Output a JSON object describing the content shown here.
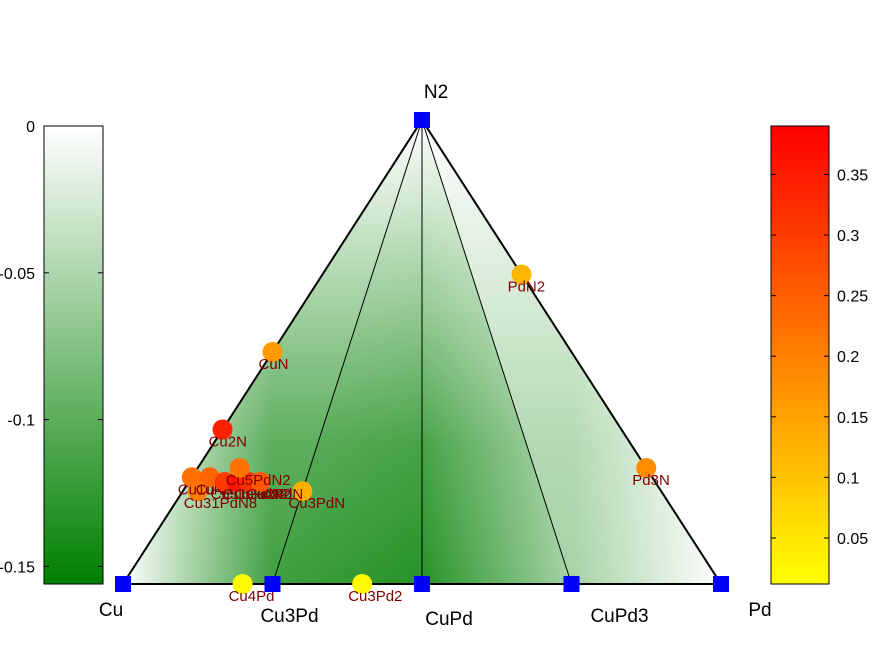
{
  "chart_data": {
    "type": "scatter",
    "subtype": "ternary-convex-hull",
    "vertices": {
      "bottom_left": "Cu",
      "top": "N2",
      "bottom_right": "Pd"
    },
    "edge_labels": [
      "Cu3Pd",
      "CuPd",
      "CuPd3"
    ],
    "hull_vertices": [
      {
        "name": "Cu",
        "cu": 1.0,
        "pd": 0.0,
        "n": 0.0
      },
      {
        "name": "Cu3Pd",
        "cu": 0.75,
        "pd": 0.25,
        "n": 0.0
      },
      {
        "name": "CuPd",
        "cu": 0.5,
        "pd": 0.5,
        "n": 0.0
      },
      {
        "name": "CuPd3",
        "cu": 0.25,
        "pd": 0.75,
        "n": 0.0
      },
      {
        "name": "Pd",
        "cu": 0.0,
        "pd": 1.0,
        "n": 0.0
      },
      {
        "name": "N2",
        "cu": 0.0,
        "pd": 0.0,
        "n": 1.0
      }
    ],
    "tie_lines": [
      [
        "N2",
        "Cu3Pd"
      ],
      [
        "N2",
        "CuPd"
      ],
      [
        "N2",
        "CuPd3"
      ]
    ],
    "points": [
      {
        "label": "PdN2",
        "cu": 0.0,
        "pd": 0.333,
        "n": 0.667,
        "value": 0.12
      },
      {
        "label": "CuN",
        "cu": 0.5,
        "pd": 0.0,
        "n": 0.5,
        "value": 0.16
      },
      {
        "label": "Cu2N",
        "cu": 0.667,
        "pd": 0.0,
        "n": 0.333,
        "value": 0.34
      },
      {
        "label": "Pd3N",
        "cu": 0.0,
        "pd": 0.75,
        "n": 0.25,
        "value": 0.18
      },
      {
        "label": "Cu4Pd",
        "cu": 0.8,
        "pd": 0.2,
        "n": 0.0,
        "value": 0.02
      },
      {
        "label": "Cu3Pd2",
        "cu": 0.6,
        "pd": 0.4,
        "n": 0.0,
        "value": 0.02
      },
      {
        "label": "Cu3PdN",
        "cu": 0.6,
        "pd": 0.2,
        "n": 0.2,
        "value": 0.13
      },
      {
        "label": "Cu31PdN8",
        "cu": 0.775,
        "pd": 0.025,
        "n": 0.2,
        "value": 0.2
      },
      {
        "label": "Cu10N3",
        "cu": 0.77,
        "pd": 0.0,
        "n": 0.23,
        "value": 0.22
      },
      {
        "label": "Cu4N",
        "cu": 0.74,
        "pd": 0.03,
        "n": 0.23,
        "value": 0.24
      },
      {
        "label": "Cu31PdN4",
        "cu": 0.72,
        "pd": 0.06,
        "n": 0.22,
        "value": 0.3
      },
      {
        "label": "Cu6PdN2",
        "cu": 0.7,
        "pd": 0.08,
        "n": 0.22,
        "value": 0.36
      },
      {
        "label": "CuPdN2",
        "cu": 0.68,
        "pd": 0.1,
        "n": 0.22,
        "value": 0.32
      },
      {
        "label": "Cu2PdN",
        "cu": 0.66,
        "pd": 0.12,
        "n": 0.22,
        "value": 0.26
      },
      {
        "label": "Cu5PdN2",
        "cu": 0.68,
        "pd": 0.07,
        "n": 0.25,
        "value": 0.22
      }
    ],
    "left_colorbar": {
      "ticks": [
        "0",
        "-0.05",
        "-0.1",
        "-0.15"
      ],
      "range": [
        -0.156,
        0
      ],
      "colors": [
        "#ffffff",
        "#008000"
      ]
    },
    "right_colorbar": {
      "ticks": [
        "0.05",
        "0.1",
        "0.15",
        "0.2",
        "0.25",
        "0.3",
        "0.35"
      ],
      "range": [
        0.012,
        0.39
      ],
      "colors": [
        "#ffff00",
        "#ff0000"
      ]
    },
    "colors": {
      "hull_vertex": "#0000ff",
      "label_text": "#800000",
      "hull_green": "#008000"
    }
  }
}
